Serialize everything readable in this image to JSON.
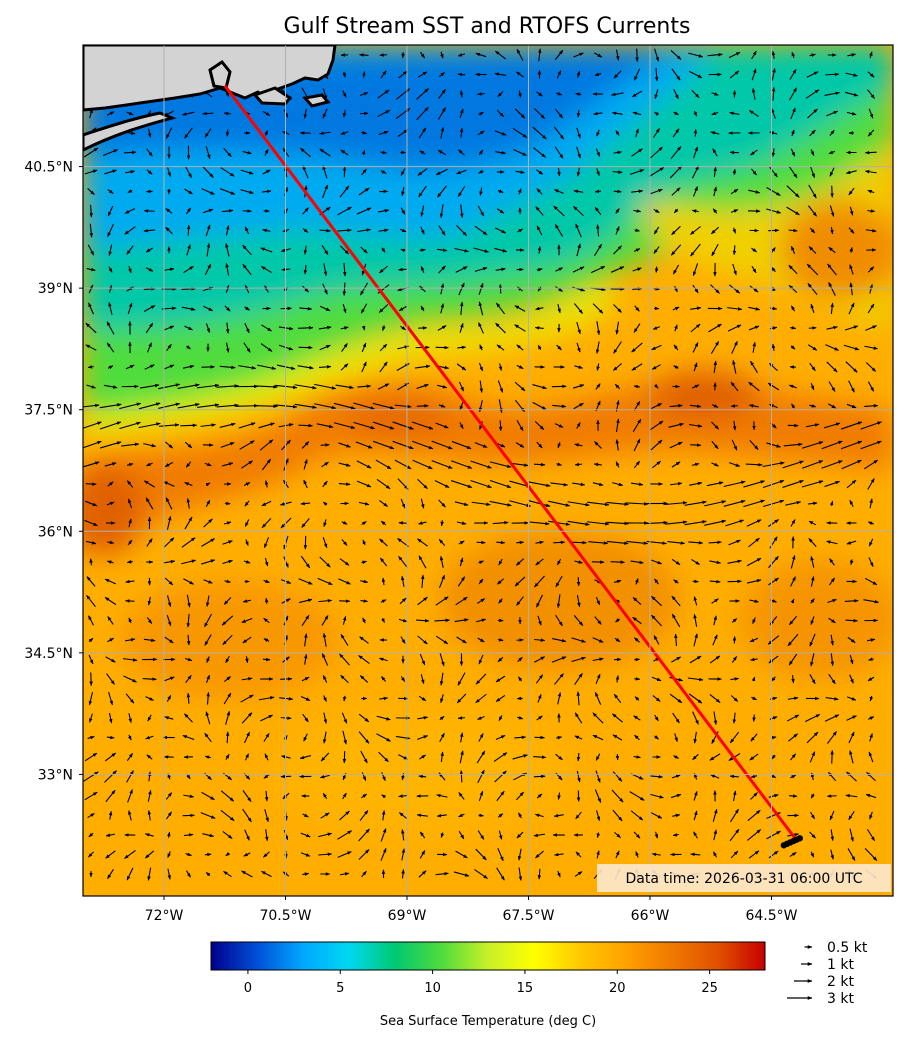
{
  "title": "Gulf Stream SST and RTOFS Currents",
  "map": {
    "lon_range": [
      -73.0,
      -63.0
    ],
    "lat_range": [
      31.5,
      42.0
    ],
    "lon_ticks": [
      {
        "value": -72.0,
        "label": "72°W"
      },
      {
        "value": -70.5,
        "label": "70.5°W"
      },
      {
        "value": -69.0,
        "label": "69°W"
      },
      {
        "value": -67.5,
        "label": "67.5°W"
      },
      {
        "value": -66.0,
        "label": "66°W"
      },
      {
        "value": -64.5,
        "label": "64.5°W"
      }
    ],
    "lat_ticks": [
      {
        "value": 40.5,
        "label": "40.5°N"
      },
      {
        "value": 39.0,
        "label": "39°N"
      },
      {
        "value": 37.5,
        "label": "37.5°N"
      },
      {
        "value": 36.0,
        "label": "36°N"
      },
      {
        "value": 34.5,
        "label": "34.5°N"
      },
      {
        "value": 33.0,
        "label": "33°N"
      }
    ],
    "route": {
      "color": "#ff0000",
      "start": {
        "lon": -71.25,
        "lat": 41.5
      },
      "end": {
        "lon": -64.2,
        "lat": 32.2
      }
    },
    "data_time": "Data time: 2026-03-31 06:00 UTC"
  },
  "colorbar": {
    "label": "Sea Surface Temperature (deg C)",
    "vmin": -2,
    "vmax": 28,
    "ticks": [
      {
        "value": 0,
        "label": "0"
      },
      {
        "value": 5,
        "label": "5"
      },
      {
        "value": 10,
        "label": "10"
      },
      {
        "value": 15,
        "label": "15"
      },
      {
        "value": 20,
        "label": "20"
      },
      {
        "value": 25,
        "label": "25"
      }
    ],
    "colors": [
      "#00008b",
      "#0050d8",
      "#00a8ff",
      "#00d8f0",
      "#00c870",
      "#50dc3c",
      "#c8f028",
      "#ffff00",
      "#ffc800",
      "#ffa000",
      "#f07800",
      "#e05000",
      "#c80000"
    ]
  },
  "key": {
    "items": [
      {
        "speed_kt": 0.5,
        "label": "0.5 kt"
      },
      {
        "speed_kt": 1,
        "label": "1 kt"
      },
      {
        "speed_kt": 2,
        "label": "2 kt"
      },
      {
        "speed_kt": 3,
        "label": "3 kt"
      }
    ]
  },
  "colors": {
    "land": "#d3d3d3",
    "coast": "#000000",
    "grid": "#b0b0b0",
    "arrow": "#000000",
    "infobox": "#fde9d0"
  }
}
